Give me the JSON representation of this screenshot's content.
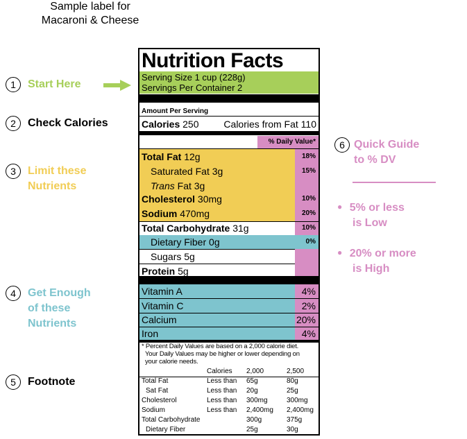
{
  "title_line1": "Sample label for",
  "title_line2": "Macaroni & Cheese",
  "colors": {
    "green": "#a7cf5a",
    "yellow": "#f1cd55",
    "blue": "#7ec4ce",
    "pink": "#d78dc3"
  },
  "icons": {
    "arrow": "right-arrow-icon"
  },
  "steps": [
    {
      "num": "1",
      "label": "Start Here"
    },
    {
      "num": "2",
      "label": "Check Calories"
    },
    {
      "num": "3",
      "line1": "Limit these",
      "line2": "Nutrients"
    },
    {
      "num": "4",
      "line1": "Get Enough",
      "line2": "of these",
      "line3": "Nutrients"
    },
    {
      "num": "5",
      "label": "Footnote"
    },
    {
      "num": "6",
      "line1": "Quick Guide",
      "line2": "to % DV"
    }
  ],
  "guide": {
    "bullet1_line1": "5% or less",
    "bullet1_line2": "is Low",
    "bullet2_line1": "20% or more",
    "bullet2_line2": "is High"
  },
  "label": {
    "heading": "Nutrition Facts",
    "serving_size": "Serving Size 1 cup (228g)",
    "servings_per_container": "Servings Per Container 2",
    "amount_per_serving": "Amount Per Serving",
    "calories_label": "Calories",
    "calories_value": "250",
    "calories_fat": "Calories from Fat 110",
    "dv_header": "% Daily Value*",
    "rows": [
      {
        "name": "Total Fat",
        "amount": "12g",
        "dv": "18%"
      },
      {
        "name": "Saturated Fat",
        "amount": "3g",
        "dv": "15%"
      },
      {
        "name": "Trans",
        "amount": "Fat 3g",
        "dv": ""
      },
      {
        "name": "Cholesterol",
        "amount": "30mg",
        "dv": "10%"
      },
      {
        "name": "Sodium",
        "amount": "470mg",
        "dv": "20%"
      },
      {
        "name": "Total Carbohydrate",
        "amount": "31g",
        "dv": "10%"
      },
      {
        "name": "Dietary Fiber",
        "amount": "0g",
        "dv": "0%"
      },
      {
        "name": "Sugars",
        "amount": "5g",
        "dv": ""
      },
      {
        "name": "Protein",
        "amount": "5g",
        "dv": ""
      }
    ],
    "vitamins": [
      {
        "name": "Vitamin A",
        "dv": "4%"
      },
      {
        "name": "Vitamin C",
        "dv": "2%"
      },
      {
        "name": "Calcium",
        "dv": "20%"
      },
      {
        "name": "Iron",
        "dv": "4%"
      }
    ],
    "footnote_line1": "* Percent Daily Values are based on a 2,000 calorie diet.",
    "footnote_line2": "Your Daily Values may be higher or lower depending on",
    "footnote_line3": "your calorie needs.",
    "table": {
      "headers": [
        "Calories",
        "2,000",
        "2,500"
      ],
      "rows": [
        [
          "Total Fat",
          "Less than",
          "65g",
          "80g"
        ],
        [
          "Sat Fat",
          "Less than",
          "20g",
          "25g"
        ],
        [
          "Cholesterol",
          "Less than",
          "300mg",
          "300mg"
        ],
        [
          "Sodium",
          "Less than",
          "2,400mg",
          "2,400mg"
        ],
        [
          "Total Carbohydrate",
          "",
          "300g",
          "375g"
        ],
        [
          "Dietary Fiber",
          "",
          "25g",
          "30g"
        ]
      ]
    }
  }
}
